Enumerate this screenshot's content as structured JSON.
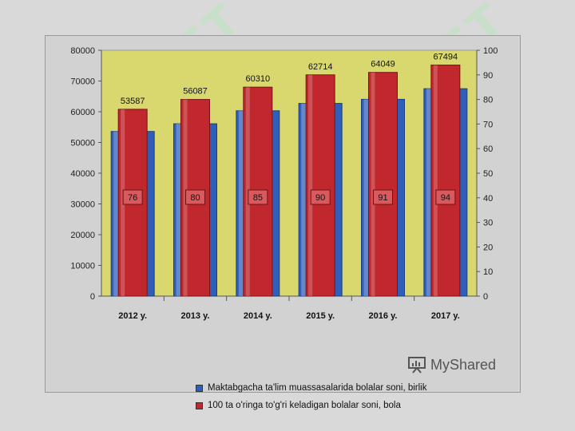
{
  "chart_data": {
    "type": "bar",
    "categories": [
      "2012 y.",
      "2013 y.",
      "2014 y.",
      "2015 y.",
      "2016 y.",
      "2017 y."
    ],
    "series": [
      {
        "name": "Maktabgacha ta'lim muassasalarida bolalar soni, birlik",
        "axis": "left",
        "color": "#2f5fb8",
        "values": [
          53587,
          56087,
          60310,
          62714,
          64049,
          67494
        ],
        "data_labels": [
          "53587",
          "56087",
          "60310",
          "62714",
          "64049",
          "67494"
        ]
      },
      {
        "name": "100 ta o'ringa to'g'ri keladigan bolalar soni, bola",
        "axis": "right",
        "color": "#c0282e",
        "values": [
          76,
          80,
          85,
          90,
          91,
          94
        ],
        "data_labels": [
          "76",
          "80",
          "85",
          "90",
          "91",
          "94"
        ]
      }
    ],
    "ylim_left": [
      0,
      80000
    ],
    "ylim_right": [
      0,
      100
    ],
    "yticks_left": [
      "0",
      "10000",
      "20000",
      "30000",
      "40000",
      "50000",
      "60000",
      "70000",
      "80000"
    ],
    "yticks_right": [
      "0",
      "10",
      "20",
      "30",
      "40",
      "50",
      "60",
      "70",
      "80",
      "90",
      "100"
    ],
    "title": "",
    "xlabel": "",
    "ylabel": "",
    "legend_position": "bottom",
    "plot_background": "#d8d86e"
  },
  "watermark": {
    "brand": "MyShared",
    "soft_text": "SOFT"
  }
}
